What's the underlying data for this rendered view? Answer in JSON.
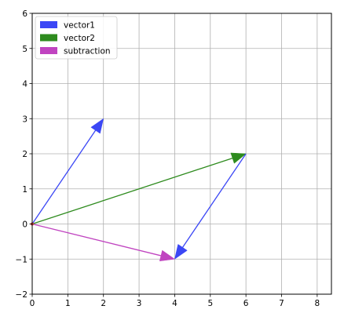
{
  "chart_data": {
    "type": "quiver",
    "title": "",
    "xlabel": "",
    "ylabel": "",
    "xlim": [
      0,
      8.4
    ],
    "ylim": [
      -2,
      6
    ],
    "x_ticks": [
      0,
      1,
      2,
      3,
      4,
      5,
      6,
      7,
      8
    ],
    "y_ticks": [
      -2,
      -1,
      0,
      1,
      2,
      3,
      4,
      5,
      6
    ],
    "grid": true,
    "legend": {
      "placement": "top-left",
      "entries": [
        {
          "label": "vector1",
          "color": "#3b47f5"
        },
        {
          "label": "vector2",
          "color": "#2e8b1e"
        },
        {
          "label": "subtraction",
          "color": "#c044c0"
        }
      ]
    },
    "vectors": [
      {
        "series": "vector1",
        "x0": 0,
        "y0": 0,
        "dx": 2,
        "dy": 3,
        "color": "#3b47f5"
      },
      {
        "series": "vector2",
        "x0": 0,
        "y0": 0,
        "dx": 6,
        "dy": 2,
        "color": "#2e8b1e"
      },
      {
        "series": "subtraction",
        "x0": 0,
        "y0": 0,
        "dx": 4,
        "dy": -1,
        "color": "#c044c0"
      },
      {
        "series": "vector1",
        "x0": 6,
        "y0": 2,
        "dx": -2,
        "dy": -3,
        "color": "#3b47f5"
      }
    ]
  }
}
